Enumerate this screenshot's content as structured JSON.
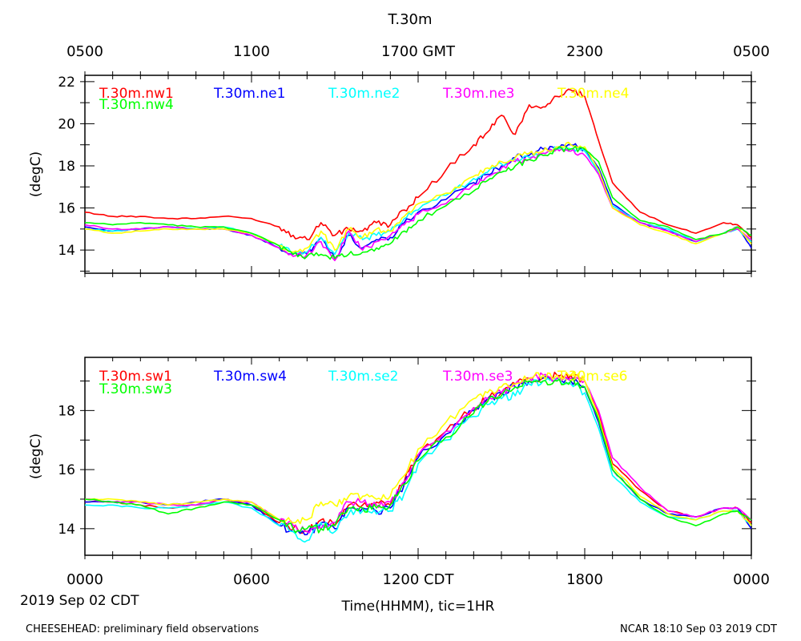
{
  "figure": {
    "title": "T.30m",
    "top_axis_ticks": [
      "0500",
      "1100",
      "1700 GMT",
      "2300",
      "0500"
    ],
    "bottom_axis_ticks": [
      "0000",
      "0600",
      "1200 CDT",
      "1800",
      "0000"
    ],
    "date_label": "2019 Sep 02 CDT",
    "xlabel": "Time(HHMM), tic=1HR",
    "footer_left": "CHEESEHEAD: preliminary field observations",
    "footer_right": "NCAR 18:10 Sep 03 2019 CDT"
  },
  "chart_data": [
    {
      "type": "line",
      "title": "T.30m",
      "xlabel": "Time(HHMM), tic=1HR",
      "ylabel": "(degC)",
      "xlim": [
        0,
        24
      ],
      "ylim": [
        12.9,
        22.3
      ],
      "yticks": [
        14,
        16,
        18,
        20,
        22
      ],
      "ytick_labels": [
        "14",
        "16",
        "18",
        "20",
        "22"
      ],
      "x": [
        0,
        1,
        2,
        3,
        4,
        5,
        6,
        7,
        7.5,
        8,
        8.5,
        9,
        9.5,
        10,
        10.5,
        11,
        11.5,
        12,
        13,
        14,
        14.5,
        15,
        15.5,
        16,
        16.5,
        17,
        17.5,
        18,
        18.5,
        19,
        20,
        21,
        22,
        23,
        23.5,
        24
      ],
      "series": [
        {
          "name": "T.30m.nw1",
          "color": "#ff0000",
          "values": [
            15.8,
            15.6,
            15.6,
            15.5,
            15.5,
            15.6,
            15.5,
            15.1,
            14.7,
            14.5,
            15.3,
            14.7,
            15.0,
            14.9,
            15.3,
            15.2,
            15.9,
            16.5,
            17.8,
            19.0,
            19.6,
            20.4,
            19.5,
            20.9,
            20.8,
            21.3,
            21.6,
            21.3,
            19.2,
            17.2,
            15.8,
            15.2,
            14.8,
            15.3,
            15.2,
            14.6
          ]
        },
        {
          "name": "T.30m.ne1",
          "color": "#0000ff",
          "values": [
            15.1,
            14.9,
            15.0,
            15.1,
            15.0,
            15.0,
            14.7,
            14.1,
            13.8,
            13.8,
            14.6,
            13.6,
            14.7,
            14.1,
            14.5,
            14.6,
            15.3,
            15.8,
            16.4,
            17.2,
            17.6,
            18.0,
            18.4,
            18.5,
            18.8,
            18.9,
            19.0,
            18.8,
            17.9,
            16.2,
            15.3,
            14.9,
            14.4,
            14.8,
            15.1,
            14.1
          ]
        },
        {
          "name": "T.30m.ne2",
          "color": "#00ffff",
          "values": [
            15.0,
            14.9,
            15.0,
            15.1,
            15.0,
            15.1,
            14.8,
            14.2,
            13.9,
            13.9,
            14.6,
            13.8,
            14.8,
            14.5,
            14.7,
            14.9,
            15.5,
            15.9,
            16.6,
            17.4,
            17.7,
            18.1,
            18.3,
            18.4,
            18.6,
            18.8,
            18.8,
            18.7,
            17.7,
            16.1,
            15.3,
            15.0,
            14.4,
            14.8,
            15.0,
            14.4
          ]
        },
        {
          "name": "T.30m.ne3",
          "color": "#ff00ff",
          "values": [
            15.2,
            15.0,
            15.0,
            15.1,
            15.0,
            15.0,
            14.7,
            14.1,
            13.7,
            13.8,
            14.4,
            13.5,
            14.9,
            14.0,
            14.4,
            14.7,
            15.2,
            15.7,
            16.2,
            17.1,
            17.5,
            17.9,
            18.2,
            18.3,
            18.6,
            18.8,
            18.7,
            18.5,
            17.6,
            16.0,
            15.3,
            14.9,
            14.4,
            14.8,
            15.0,
            14.5
          ]
        },
        {
          "name": "T.30m.ne4",
          "color": "#ffff00",
          "values": [
            15.0,
            14.8,
            14.9,
            15.0,
            15.0,
            15.0,
            14.8,
            14.2,
            13.9,
            14.1,
            14.9,
            14.0,
            15.0,
            14.6,
            15.0,
            14.9,
            15.6,
            16.2,
            16.7,
            17.5,
            17.9,
            18.2,
            18.4,
            18.6,
            18.7,
            18.9,
            19.0,
            18.9,
            17.8,
            16.0,
            15.2,
            14.8,
            14.3,
            14.8,
            15.1,
            14.3
          ]
        },
        {
          "name": "T.30m.nw4",
          "color": "#00ff00",
          "values": [
            15.3,
            15.2,
            15.3,
            15.2,
            15.1,
            15.1,
            14.8,
            14.2,
            13.8,
            13.7,
            13.8,
            13.6,
            13.8,
            13.9,
            14.1,
            14.3,
            14.9,
            15.4,
            16.1,
            16.8,
            17.3,
            17.7,
            18.0,
            18.3,
            18.5,
            18.8,
            18.8,
            18.8,
            18.2,
            16.5,
            15.4,
            15.1,
            14.5,
            14.8,
            15.1,
            14.7
          ]
        }
      ]
    },
    {
      "type": "line",
      "title": "",
      "xlabel": "Time(HHMM), tic=1HR",
      "ylabel": "(degC)",
      "xlim": [
        0,
        24
      ],
      "ylim": [
        13.1,
        19.8
      ],
      "yticks": [
        14,
        16,
        18
      ],
      "ytick_labels": [
        "14",
        "16",
        "18"
      ],
      "x": [
        0,
        1,
        2,
        3,
        4,
        5,
        6,
        7,
        7.5,
        8,
        8.5,
        9,
        9.5,
        10,
        10.5,
        11,
        11.5,
        12,
        13,
        14,
        14.5,
        15,
        15.5,
        16,
        16.5,
        17,
        17.5,
        18,
        18.5,
        19,
        20,
        21,
        22,
        23,
        23.5,
        24
      ],
      "series": [
        {
          "name": "T.30m.sw1",
          "color": "#ff0000",
          "values": [
            14.9,
            14.9,
            14.8,
            14.7,
            14.8,
            15.0,
            14.8,
            14.2,
            14.0,
            13.9,
            14.3,
            14.1,
            14.8,
            14.8,
            14.9,
            14.8,
            15.6,
            16.5,
            17.3,
            18.1,
            18.4,
            18.6,
            18.9,
            19.1,
            19.1,
            19.2,
            19.2,
            19.0,
            17.9,
            16.2,
            15.3,
            14.6,
            14.4,
            14.7,
            14.7,
            14.2
          ]
        },
        {
          "name": "T.30m.sw4",
          "color": "#0000ff",
          "values": [
            14.9,
            14.9,
            14.9,
            14.8,
            14.9,
            15.0,
            14.8,
            14.1,
            13.9,
            13.8,
            14.2,
            14.0,
            14.7,
            14.7,
            14.6,
            14.7,
            15.5,
            16.4,
            17.2,
            18.0,
            18.4,
            18.6,
            18.8,
            19.0,
            19.1,
            19.1,
            19.0,
            18.8,
            17.6,
            16.0,
            15.0,
            14.5,
            14.4,
            14.7,
            14.7,
            14.0
          ]
        },
        {
          "name": "T.30m.se2",
          "color": "#00ffff",
          "values": [
            14.8,
            14.8,
            14.7,
            14.7,
            14.8,
            14.9,
            14.7,
            14.1,
            13.9,
            13.6,
            14.2,
            13.9,
            14.5,
            14.6,
            14.5,
            14.6,
            15.2,
            16.2,
            17.0,
            17.8,
            18.2,
            18.4,
            18.5,
            18.9,
            19.0,
            19.0,
            18.9,
            18.6,
            17.4,
            15.8,
            14.9,
            14.4,
            14.3,
            14.6,
            14.6,
            14.1
          ]
        },
        {
          "name": "T.30m.se3",
          "color": "#ff00ff",
          "values": [
            15.0,
            14.9,
            14.9,
            14.8,
            14.8,
            15.0,
            14.9,
            14.3,
            14.1,
            13.9,
            14.0,
            14.2,
            14.9,
            14.9,
            14.8,
            14.9,
            15.6,
            16.5,
            17.3,
            18.1,
            18.4,
            18.6,
            18.9,
            19.1,
            19.2,
            19.1,
            19.1,
            19.0,
            18.0,
            16.4,
            15.4,
            14.6,
            14.4,
            14.7,
            14.7,
            14.3
          ]
        },
        {
          "name": "T.30m.se6",
          "color": "#ffff00",
          "values": [
            15.0,
            15.0,
            14.9,
            14.8,
            14.9,
            15.0,
            14.9,
            14.3,
            14.2,
            14.3,
            14.9,
            14.8,
            15.1,
            15.1,
            15.0,
            15.1,
            15.8,
            16.7,
            17.6,
            18.4,
            18.6,
            18.8,
            18.9,
            19.1,
            19.2,
            19.2,
            19.2,
            19.0,
            17.8,
            16.1,
            15.1,
            14.5,
            14.3,
            14.6,
            14.6,
            14.1
          ]
        },
        {
          "name": "T.30m.sw3",
          "color": "#00ff00",
          "values": [
            15.0,
            14.9,
            14.8,
            14.5,
            14.7,
            14.9,
            14.8,
            14.3,
            14.0,
            14.0,
            14.0,
            14.1,
            14.7,
            14.7,
            14.7,
            14.8,
            15.5,
            16.3,
            17.1,
            17.9,
            18.3,
            18.5,
            18.8,
            19.0,
            19.0,
            19.0,
            19.0,
            18.8,
            17.7,
            16.0,
            15.0,
            14.4,
            14.1,
            14.5,
            14.6,
            14.3
          ]
        }
      ]
    }
  ]
}
